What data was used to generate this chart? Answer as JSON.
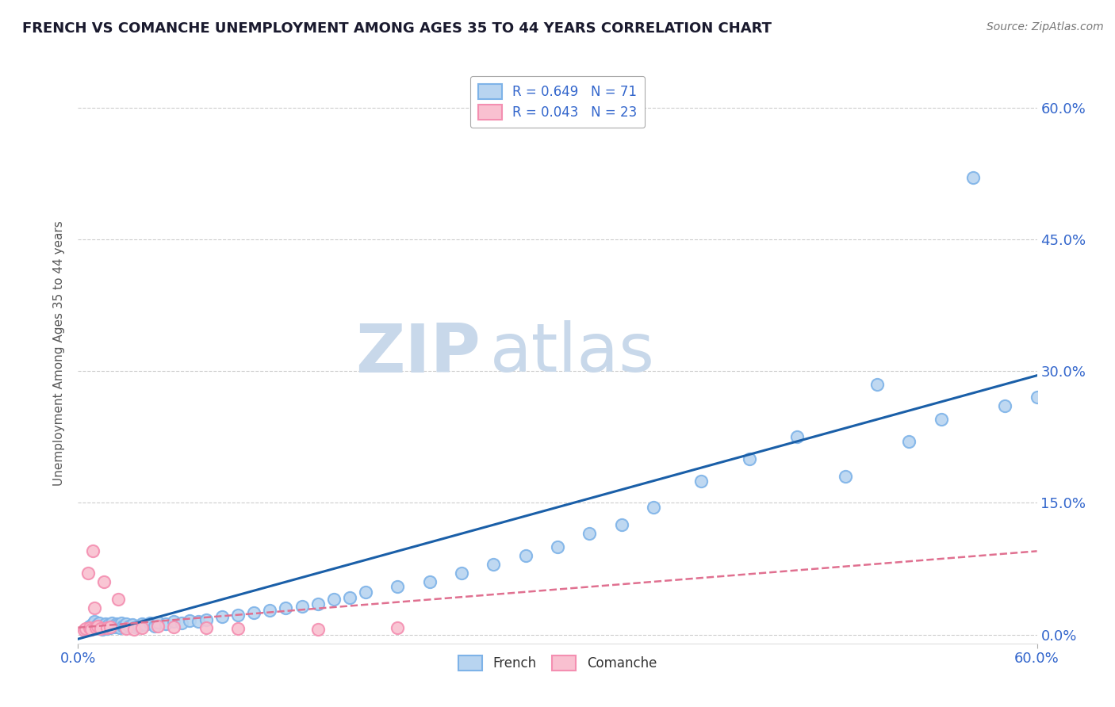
{
  "title": "FRENCH VS COMANCHE UNEMPLOYMENT AMONG AGES 35 TO 44 YEARS CORRELATION CHART",
  "source_text": "Source: ZipAtlas.com",
  "ylabel": "Unemployment Among Ages 35 to 44 years",
  "xlim": [
    0.0,
    0.6
  ],
  "ylim": [
    -0.01,
    0.65
  ],
  "yticks_right": [
    0.0,
    0.15,
    0.3,
    0.45,
    0.6
  ],
  "yticklabels_right": [
    "0.0%",
    "15.0%",
    "30.0%",
    "45.0%",
    "60.0%"
  ],
  "xtick_left_label": "0.0%",
  "xtick_right_label": "60.0%",
  "french_color": "#7EB3E8",
  "french_face": "#B8D4F0",
  "comanche_color": "#F48FB1",
  "comanche_face": "#F9C0D0",
  "trend_french_color": "#1A5FA8",
  "trend_comanche_color": "#E07090",
  "watermark_zip": "ZIP",
  "watermark_atlas": "atlas",
  "watermark_color": "#C8D8EA",
  "background_color": "#FFFFFF",
  "grid_color": "#CCCCCC",
  "title_color": "#1A1A2E",
  "legend_label_french": "R = 0.649   N = 71",
  "legend_label_comanche": "R = 0.043   N = 23",
  "french_x": [
    0.005,
    0.007,
    0.008,
    0.009,
    0.01,
    0.01,
    0.011,
    0.012,
    0.013,
    0.014,
    0.015,
    0.015,
    0.016,
    0.017,
    0.018,
    0.019,
    0.02,
    0.021,
    0.022,
    0.023,
    0.024,
    0.025,
    0.026,
    0.027,
    0.028,
    0.029,
    0.03,
    0.032,
    0.034,
    0.036,
    0.038,
    0.04,
    0.042,
    0.045,
    0.048,
    0.05,
    0.055,
    0.06,
    0.065,
    0.07,
    0.075,
    0.08,
    0.09,
    0.1,
    0.11,
    0.12,
    0.13,
    0.14,
    0.15,
    0.16,
    0.17,
    0.18,
    0.2,
    0.22,
    0.24,
    0.26,
    0.28,
    0.3,
    0.32,
    0.34,
    0.36,
    0.39,
    0.42,
    0.45,
    0.48,
    0.5,
    0.52,
    0.54,
    0.56,
    0.58,
    0.6
  ],
  "french_y": [
    0.005,
    0.01,
    0.008,
    0.012,
    0.007,
    0.015,
    0.009,
    0.011,
    0.013,
    0.008,
    0.006,
    0.01,
    0.009,
    0.012,
    0.007,
    0.011,
    0.008,
    0.013,
    0.01,
    0.009,
    0.012,
    0.011,
    0.008,
    0.013,
    0.01,
    0.009,
    0.012,
    0.01,
    0.011,
    0.009,
    0.01,
    0.012,
    0.011,
    0.013,
    0.01,
    0.014,
    0.012,
    0.015,
    0.013,
    0.016,
    0.015,
    0.017,
    0.02,
    0.022,
    0.025,
    0.028,
    0.03,
    0.032,
    0.035,
    0.04,
    0.042,
    0.048,
    0.055,
    0.06,
    0.07,
    0.08,
    0.09,
    0.1,
    0.115,
    0.125,
    0.145,
    0.175,
    0.2,
    0.225,
    0.18,
    0.285,
    0.22,
    0.245,
    0.52,
    0.26,
    0.27
  ],
  "comanche_x": [
    0.004,
    0.005,
    0.006,
    0.007,
    0.008,
    0.009,
    0.01,
    0.011,
    0.012,
    0.014,
    0.016,
    0.018,
    0.02,
    0.025,
    0.03,
    0.035,
    0.04,
    0.05,
    0.06,
    0.08,
    0.1,
    0.15,
    0.2
  ],
  "comanche_y": [
    0.005,
    0.007,
    0.07,
    0.008,
    0.006,
    0.095,
    0.03,
    0.008,
    0.01,
    0.007,
    0.06,
    0.008,
    0.009,
    0.04,
    0.007,
    0.006,
    0.008,
    0.01,
    0.009,
    0.008,
    0.007,
    0.006,
    0.008
  ],
  "french_trend_x0": 0.0,
  "french_trend_y0": -0.005,
  "french_trend_x1": 0.6,
  "french_trend_y1": 0.295,
  "comanche_trend_x0": 0.0,
  "comanche_trend_y0": 0.008,
  "comanche_trend_x1": 0.6,
  "comanche_trend_y1": 0.095
}
